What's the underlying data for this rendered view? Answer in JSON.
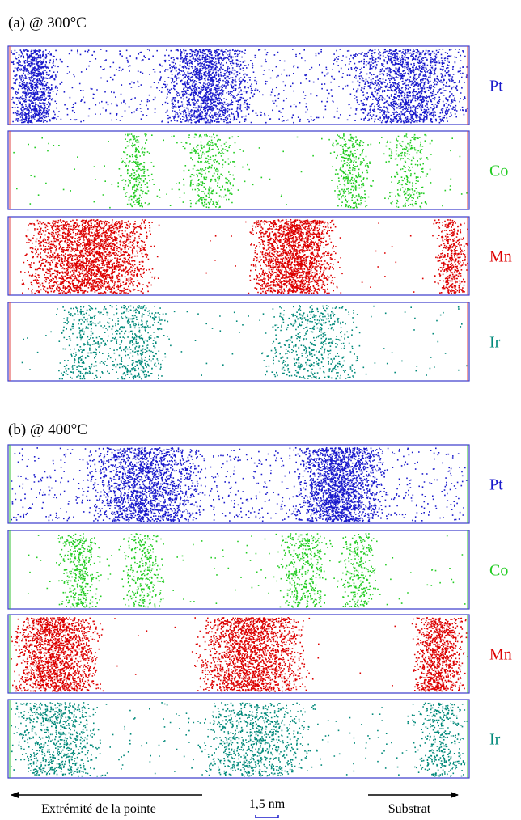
{
  "panels": [
    {
      "title": "(a) @ 300°C",
      "rows": [
        {
          "label": "Pt"
        },
        {
          "label": "Co"
        },
        {
          "label": "Mn"
        },
        {
          "label": "Ir"
        }
      ]
    },
    {
      "title": "(b) @ 400°C",
      "rows": [
        {
          "label": "Pt"
        },
        {
          "label": "Co"
        },
        {
          "label": "Mn"
        },
        {
          "label": "Ir"
        }
      ]
    }
  ],
  "footer": {
    "left": "Extrémité de la pointe",
    "scale": "1,5 nm",
    "right": "Substrat"
  }
}
